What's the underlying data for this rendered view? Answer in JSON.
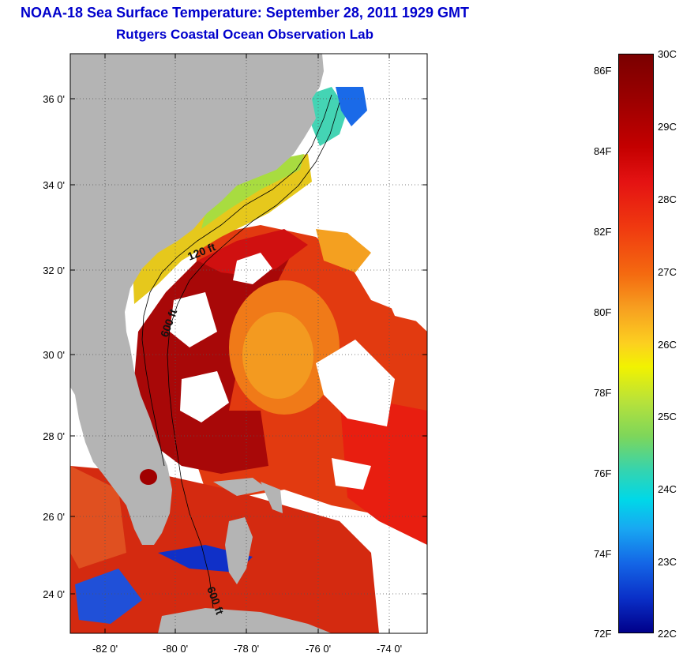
{
  "title": {
    "line1": "NOAA-18 Sea Surface Temperature:  September 28, 2011 1929 GMT",
    "line2": "Rutgers Coastal Ocean Observation Lab"
  },
  "map": {
    "lat_ticks": [
      "36 0'",
      "34 0'",
      "32 0'",
      "30 0'",
      "28 0'",
      "26 0'",
      "24 0'"
    ],
    "lon_ticks": [
      "-82 0'",
      "-80 0'",
      "-78 0'",
      "-76 0'",
      "-74 0'"
    ],
    "contours": [
      "120 ft",
      "600 ft",
      "600 ft"
    ]
  },
  "colorbar": {
    "celsius": [
      "30C",
      "29C",
      "28C",
      "27C",
      "26C",
      "25C",
      "24C",
      "23C",
      "22C"
    ],
    "fahrenheit": [
      "86F",
      "84F",
      "82F",
      "80F",
      "78F",
      "76F",
      "74F",
      "72F"
    ],
    "range_celsius": [
      22,
      30
    ],
    "range_fahrenheit": [
      72,
      86
    ]
  },
  "colors": {
    "title": "#0000cc",
    "land": "#b4b4b4",
    "warm": "#c40000",
    "cloud": "#ffffff"
  }
}
